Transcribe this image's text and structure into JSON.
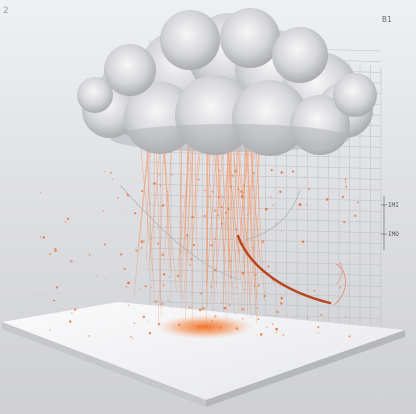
{
  "image": {
    "corner_mark": "2",
    "top_right_label": "B1",
    "axis_label_upper": "IMI",
    "axis_label_lower": "IMO",
    "colors": {
      "background": "#d9dadd",
      "platform": "#f4f4f6",
      "cloud": "#c9cacd",
      "rain": "#f07a3c",
      "grid": "#b9bcc1",
      "curve": "#b8451c"
    }
  }
}
